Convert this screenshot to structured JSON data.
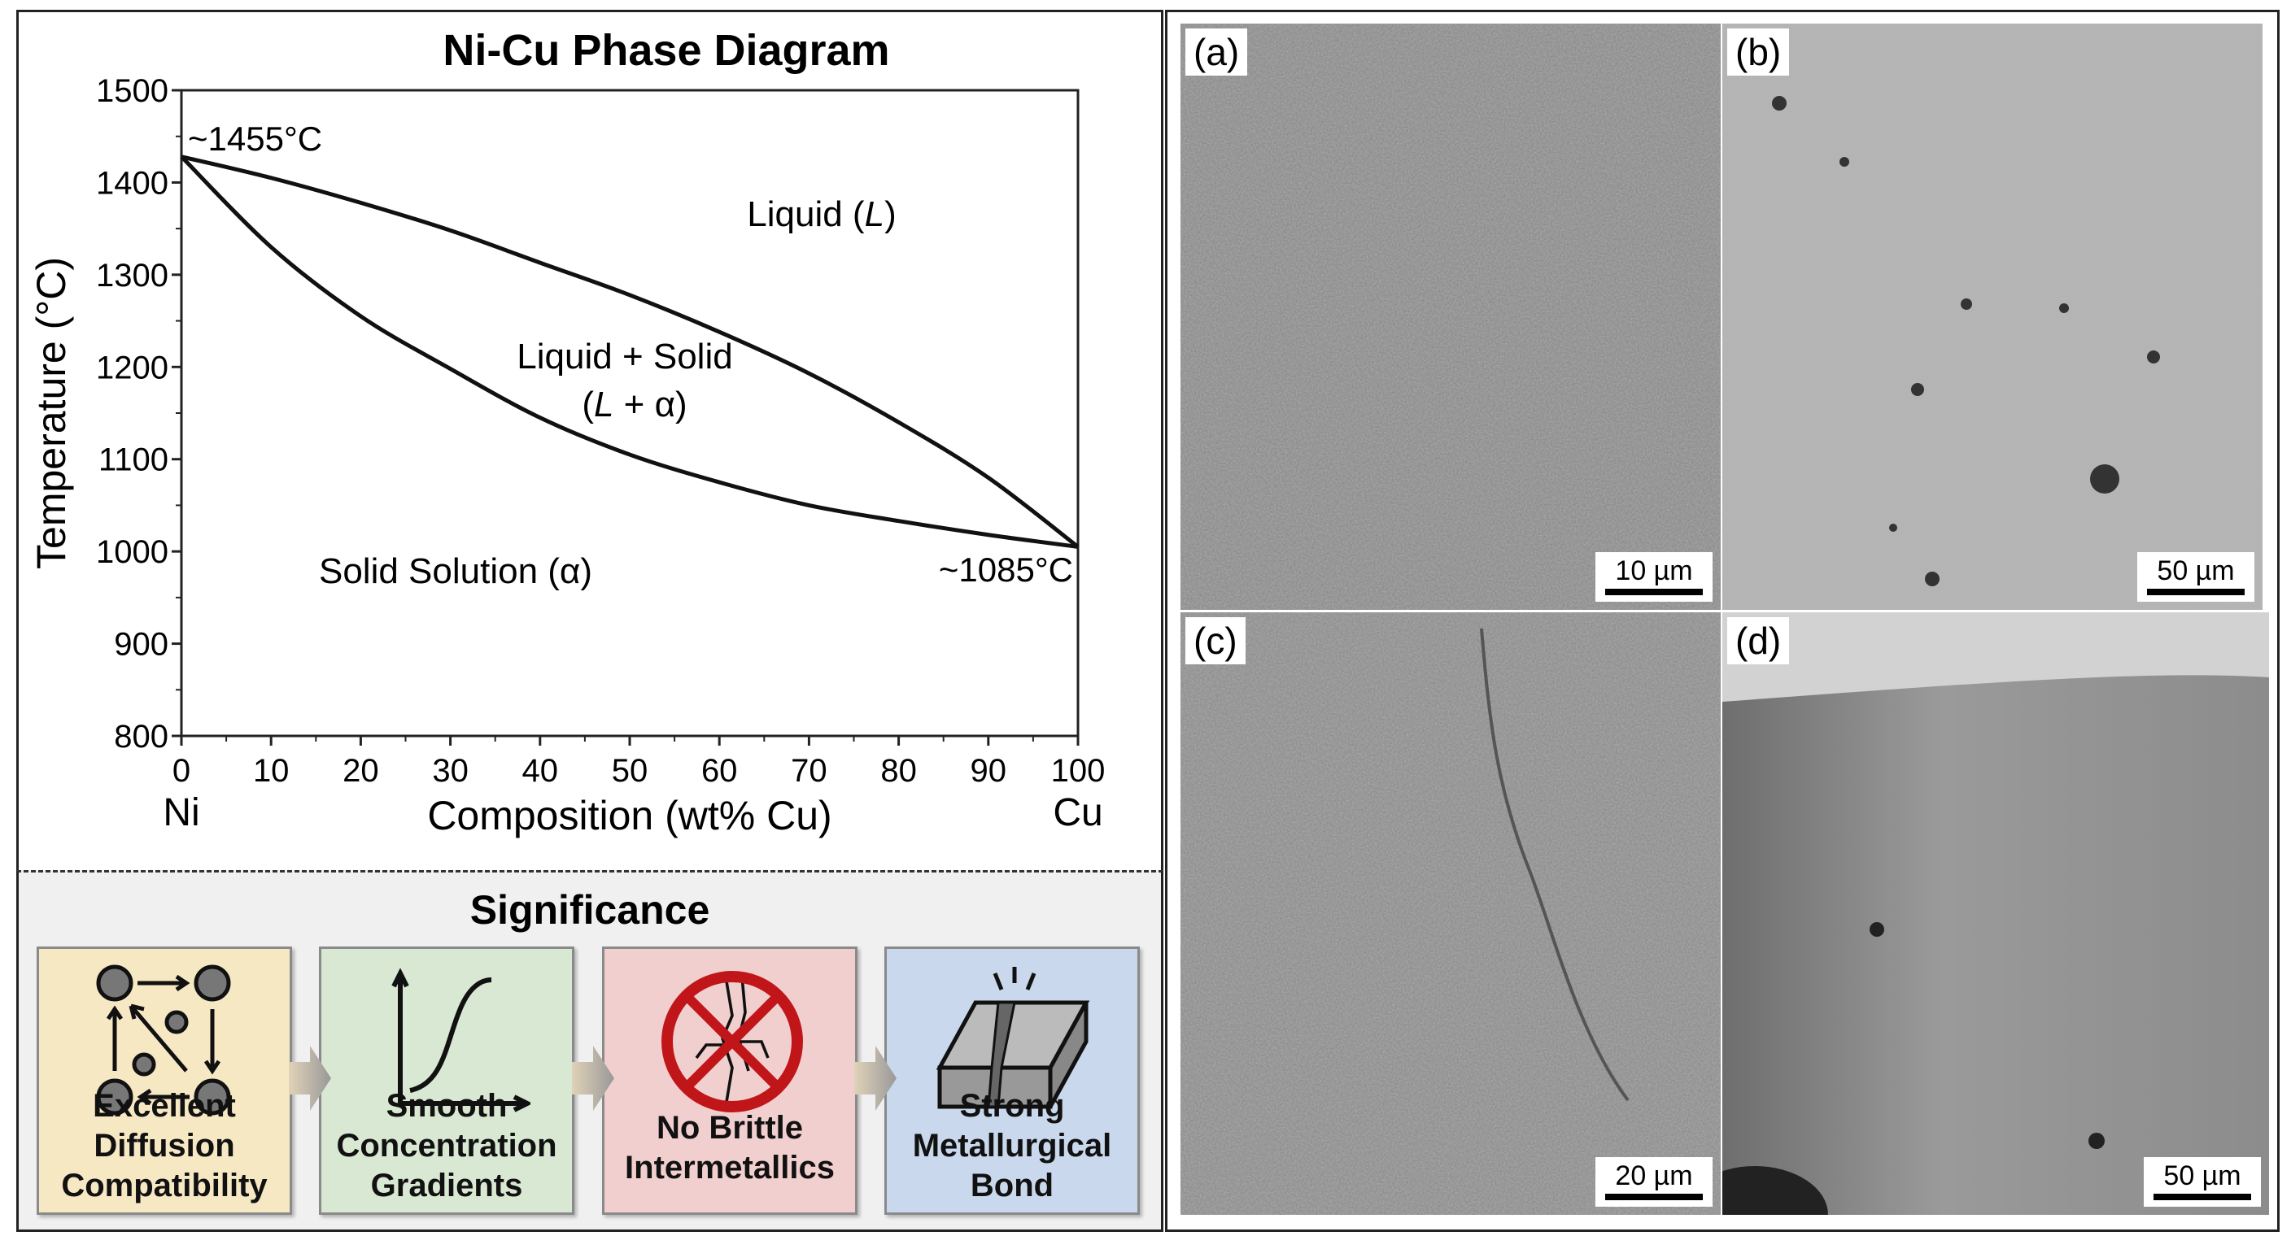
{
  "chart_data": {
    "type": "line",
    "title": "Ni-Cu Phase Diagram",
    "xlabel": "Composition (wt% Cu)",
    "ylabel": "Temperature (°C)",
    "xlim": [
      0,
      100
    ],
    "ylim": [
      800,
      1500
    ],
    "x_ticks": [
      "0",
      "10",
      "20",
      "30",
      "40",
      "50",
      "60",
      "70",
      "80",
      "90",
      "100"
    ],
    "y_ticks": [
      "800",
      "900",
      "1000",
      "1100",
      "1200",
      "1300",
      "1400",
      "1500"
    ],
    "x_end_labels": {
      "left": "Ni",
      "right": "Cu"
    },
    "grid": false,
    "series": [
      {
        "x": [
          0,
          10,
          20,
          30,
          40,
          50,
          60,
          70,
          80,
          90,
          100
        ],
        "y": [
          1428,
          1405,
          1378,
          1348,
          1313,
          1278,
          1238,
          1193,
          1140,
          1080,
          1005
        ]
      },
      {
        "x": [
          0,
          10,
          20,
          30,
          40,
          50,
          60,
          70,
          80,
          90,
          100
        ],
        "y": [
          1428,
          1330,
          1255,
          1198,
          1145,
          1105,
          1075,
          1050,
          1033,
          1018,
          1005
        ]
      }
    ],
    "annotations": {
      "ni_melt": "~1455°C",
      "cu_melt": "~1085°C",
      "liquid": "Liquid (",
      "liquid_sym": "L",
      "close": ")",
      "two_phase_line1": "Liquid + Solid",
      "two_phase_open": "(",
      "two_phase_sym": "L",
      "two_phase_rest": " + α)",
      "solid": "Solid Solution (α)"
    }
  },
  "significance": {
    "title": "Significance",
    "items": [
      {
        "lines": [
          "Excellent",
          "Diffusion",
          "Compatibility"
        ],
        "color": "#f7e8c4",
        "icon": "atom-diffusion-icon"
      },
      {
        "lines": [
          "Smooth",
          "Concentration",
          "Gradients"
        ],
        "color": "#d9e8d2",
        "icon": "s-curve-graph-icon"
      },
      {
        "lines": [
          "No Brittle",
          "Intermetallics"
        ],
        "color": "#f2cfcf",
        "icon": "no-crack-icon"
      },
      {
        "lines": [
          "Strong",
          "Metallurgical",
          "Bond"
        ],
        "color": "#c9d8ec",
        "icon": "bonded-block-icon"
      }
    ]
  },
  "micrographs": [
    {
      "label": "(a)",
      "scale": "10 µm"
    },
    {
      "label": "(b)",
      "scale": "50 µm"
    },
    {
      "label": "(c)",
      "scale": "20 µm"
    },
    {
      "label": "(d)",
      "scale": "50 µm"
    }
  ]
}
